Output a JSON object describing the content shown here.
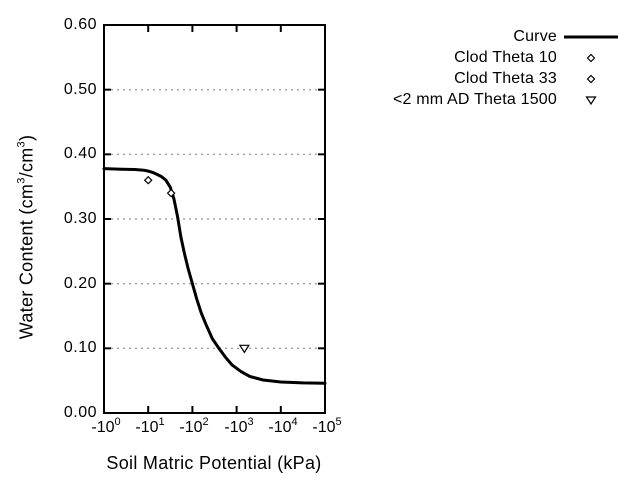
{
  "chart_data": {
    "type": "line",
    "title": "",
    "xlabel": "Soil Matric Potential (kPa)",
    "ylabel": "Water Content (cm3/cm3)",
    "x_axis": {
      "scale": "negative-log10",
      "unit": "kPa",
      "tick_exponents": [
        0,
        1,
        2,
        3,
        4,
        5
      ],
      "range_kPa": [
        -1,
        -100000
      ]
    },
    "y_axis": {
      "range": [
        0,
        0.6
      ],
      "tick_step": 0.1,
      "grid_ticks": [
        0.1,
        0.2,
        0.3,
        0.4,
        0.5
      ],
      "grid_style": "dotted"
    },
    "legend_position": "top-right-outside",
    "series": [
      {
        "name": "Curve",
        "type": "line",
        "marker": "line-sample",
        "color": "#000000",
        "points_log10kPa_theta": [
          [
            0.0,
            0.378
          ],
          [
            0.4,
            0.377
          ],
          [
            0.7,
            0.3765
          ],
          [
            0.9,
            0.3755
          ],
          [
            1.0,
            0.374
          ],
          [
            1.1,
            0.372
          ],
          [
            1.2,
            0.369
          ],
          [
            1.3,
            0.3655
          ],
          [
            1.4,
            0.36
          ],
          [
            1.5,
            0.349
          ],
          [
            1.58,
            0.332
          ],
          [
            1.66,
            0.305
          ],
          [
            1.74,
            0.272
          ],
          [
            1.82,
            0.247
          ],
          [
            1.9,
            0.224
          ],
          [
            2.0,
            0.2
          ],
          [
            2.1,
            0.176
          ],
          [
            2.2,
            0.155
          ],
          [
            2.3,
            0.138
          ],
          [
            2.45,
            0.115
          ],
          [
            2.6,
            0.1
          ],
          [
            2.75,
            0.086
          ],
          [
            2.9,
            0.074
          ],
          [
            3.1,
            0.064
          ],
          [
            3.3,
            0.0565
          ],
          [
            3.6,
            0.051
          ],
          [
            4.0,
            0.048
          ],
          [
            4.5,
            0.0465
          ],
          [
            5.0,
            0.046
          ]
        ]
      },
      {
        "name": "Clod Theta 10",
        "type": "scatter",
        "marker": "open-diamond",
        "color": "#000000",
        "points_kPa_theta": [
          [
            -10,
            0.36
          ]
        ]
      },
      {
        "name": "Clod Theta 33",
        "type": "scatter",
        "marker": "open-diamond",
        "color": "#000000",
        "points_kPa_theta": [
          [
            -33,
            0.34
          ]
        ]
      },
      {
        "name": "<2 mm AD Theta 1500",
        "type": "scatter",
        "marker": "open-triangle-down",
        "color": "#000000",
        "points_kPa_theta": [
          [
            -1500,
            0.1
          ]
        ]
      }
    ]
  },
  "axes": {
    "y": {
      "ticks": [
        "0.60",
        "0.50",
        "0.40",
        "0.30",
        "0.20",
        "0.10",
        "0.00"
      ],
      "label_parts": {
        "p1": "Water Content (cm",
        "sup1": "3",
        "p2": "/cm",
        "sup2": "3",
        "p3": ")"
      }
    },
    "x": {
      "label": "Soil Matric Potential (kPa)",
      "ticks": [
        {
          "base": "-10",
          "exp": "0"
        },
        {
          "base": "-10",
          "exp": "1"
        },
        {
          "base": "-10",
          "exp": "2"
        },
        {
          "base": "-10",
          "exp": "3"
        },
        {
          "base": "-10",
          "exp": "4"
        },
        {
          "base": "-10",
          "exp": "5"
        }
      ]
    }
  },
  "legend": {
    "items": [
      {
        "label": "Curve",
        "marker": "line-sample"
      },
      {
        "label": "Clod Theta 10",
        "marker": "open-diamond"
      },
      {
        "label": "Clod Theta 33",
        "marker": "open-diamond"
      },
      {
        "label": "<2 mm AD Theta 1500",
        "marker": "open-triangle-down"
      }
    ]
  },
  "colors": {
    "background": "#ffffff",
    "axis": "#000000",
    "grid": "#a0a0a0",
    "curve": "#000000",
    "text": "#000000"
  }
}
